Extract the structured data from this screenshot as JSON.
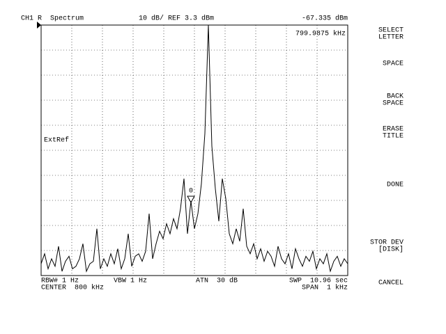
{
  "header": {
    "left": "CH1 R  Spectrum",
    "center": "10 dB/ REF 3.3 dBm",
    "right": "-67.335 dBm"
  },
  "marker": {
    "readout": "799.9875 kHz",
    "label": "0"
  },
  "annotation": "ExtRef",
  "footer": {
    "rbw": "RBW# 1 Hz",
    "vbw": "VBW 1 Hz",
    "atn": "ATN  30 dB",
    "swp": "SWP  10.96 sec",
    "center": "CENTER  800 kHz",
    "span": "SPAN  1 kHz"
  },
  "softkeys": [
    [
      "SELECT",
      "LETTER"
    ],
    [
      "SPACE"
    ],
    [
      "BACK",
      "SPACE"
    ],
    [
      "ERASE",
      "TITLE"
    ],
    [
      "DONE"
    ],
    [
      "STOR DEV",
      "[DISK]"
    ],
    [
      "CANCEL"
    ]
  ],
  "trace": {
    "ylim": [
      -96.7,
      3.3
    ],
    "values": [
      -92,
      -88,
      -94,
      -90,
      -93,
      -85,
      -95,
      -91,
      -89,
      -94,
      -93,
      -90,
      -84,
      -95,
      -92,
      -91,
      -78,
      -94,
      -90,
      -93,
      -88,
      -92,
      -86,
      -94,
      -90,
      -80,
      -93,
      -89,
      -88,
      -91,
      -87,
      -72,
      -90,
      -84,
      -79,
      -82,
      -76,
      -80,
      -74,
      -78,
      -70,
      -58,
      -80,
      -67,
      -78,
      -72,
      -60,
      -40,
      3.3,
      -45,
      -62,
      -75,
      -58,
      -66,
      -80,
      -84,
      -78,
      -83,
      -70,
      -85,
      -88,
      -84,
      -90,
      -86,
      -91,
      -87,
      -89,
      -93,
      -85,
      -90,
      -92,
      -88,
      -94,
      -86,
      -90,
      -93,
      -89,
      -91,
      -87,
      -94,
      -90,
      -92,
      -88,
      -95,
      -91,
      -89,
      -93,
      -90,
      -92
    ]
  }
}
